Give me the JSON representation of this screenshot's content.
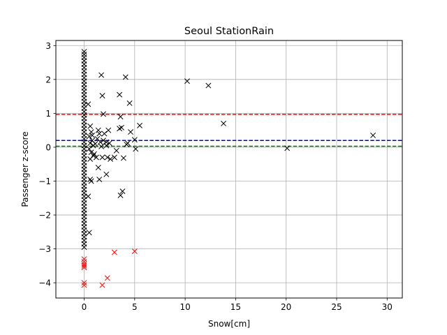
{
  "chart_data": {
    "type": "scatter",
    "title": "Seoul StationRain",
    "xlabel": "Snow[cm]",
    "ylabel": "Passenger z-score",
    "xlim": [
      -2.8,
      31.5
    ],
    "ylim": [
      -4.45,
      3.15
    ],
    "xticks": [
      0,
      5,
      10,
      15,
      20,
      25,
      30
    ],
    "yticks": [
      -4,
      -3,
      -2,
      -1,
      0,
      1,
      2,
      3
    ],
    "grid": true,
    "marker": "x",
    "reference_lines": [
      {
        "y": 0.97,
        "color": "#ff0000",
        "style": "dashed"
      },
      {
        "y": 0.2,
        "color": "#0000cc",
        "style": "dashed"
      },
      {
        "y": 0.03,
        "color": "#008000",
        "style": "dashed"
      }
    ],
    "series": [
      {
        "color": "#000000",
        "points": [
          [
            0,
            2.82
          ],
          [
            0,
            2.74
          ],
          [
            0,
            2.65
          ],
          [
            0,
            2.55
          ],
          [
            0,
            2.45
          ],
          [
            0,
            2.35
          ],
          [
            0,
            2.25
          ],
          [
            0,
            2.15
          ],
          [
            0,
            2.05
          ],
          [
            0,
            1.95
          ],
          [
            0,
            1.85
          ],
          [
            0,
            1.75
          ],
          [
            0,
            1.65
          ],
          [
            0,
            1.55
          ],
          [
            0,
            1.45
          ],
          [
            0,
            1.35
          ],
          [
            0,
            1.25
          ],
          [
            0,
            1.15
          ],
          [
            0,
            1.05
          ],
          [
            0,
            0.95
          ],
          [
            0,
            0.85
          ],
          [
            0,
            0.75
          ],
          [
            0,
            0.65
          ],
          [
            0,
            0.55
          ],
          [
            0,
            0.45
          ],
          [
            0,
            0.35
          ],
          [
            0,
            0.25
          ],
          [
            0,
            0.15
          ],
          [
            0,
            0.05
          ],
          [
            0,
            -0.05
          ],
          [
            0,
            -0.15
          ],
          [
            0,
            -0.25
          ],
          [
            0,
            -0.35
          ],
          [
            0,
            -0.45
          ],
          [
            0,
            -0.55
          ],
          [
            0,
            -0.65
          ],
          [
            0,
            -0.75
          ],
          [
            0,
            -0.85
          ],
          [
            0,
            -0.95
          ],
          [
            0,
            -1.05
          ],
          [
            0,
            -1.15
          ],
          [
            0,
            -1.25
          ],
          [
            0,
            -1.35
          ],
          [
            0,
            -1.45
          ],
          [
            0,
            -1.55
          ],
          [
            0,
            -1.65
          ],
          [
            0,
            -1.75
          ],
          [
            0,
            -1.85
          ],
          [
            0,
            -1.95
          ],
          [
            0,
            -2.05
          ],
          [
            0,
            -2.15
          ],
          [
            0,
            -2.25
          ],
          [
            0,
            -2.35
          ],
          [
            0,
            -2.45
          ],
          [
            0,
            -2.55
          ],
          [
            0,
            -2.65
          ],
          [
            0,
            -2.75
          ],
          [
            0,
            -2.85
          ],
          [
            0,
            -2.95
          ],
          [
            0.4,
            1.27
          ],
          [
            0.6,
            0.62
          ],
          [
            0.7,
            0.45
          ],
          [
            0.5,
            0.32
          ],
          [
            0.8,
            0.2
          ],
          [
            0.6,
            0.12
          ],
          [
            0.9,
            0.05
          ],
          [
            0.5,
            -0.05
          ],
          [
            0.7,
            -0.15
          ],
          [
            0.9,
            -0.25
          ],
          [
            0.6,
            -0.35
          ],
          [
            1.0,
            -0.2
          ],
          [
            1.1,
            0.1
          ],
          [
            0.8,
            0.35
          ],
          [
            0.4,
            -1.45
          ],
          [
            0.5,
            -2.52
          ],
          [
            0.7,
            -1.0
          ],
          [
            0.6,
            -0.95
          ],
          [
            1.2,
            -0.3
          ],
          [
            1.3,
            0.25
          ],
          [
            1.4,
            0.5
          ],
          [
            1.5,
            0.4
          ],
          [
            1.6,
            0.15
          ],
          [
            1.4,
            -0.6
          ],
          [
            1.5,
            -0.95
          ],
          [
            1.7,
            0.02
          ],
          [
            1.8,
            -0.3
          ],
          [
            1.9,
            0.2
          ],
          [
            2.0,
            0.4
          ],
          [
            2.2,
            0.05
          ],
          [
            2.3,
            -0.3
          ],
          [
            2.4,
            0.5
          ],
          [
            2.2,
            -0.8
          ],
          [
            2.5,
            0.12
          ],
          [
            1.7,
            2.13
          ],
          [
            1.8,
            1.52
          ],
          [
            1.9,
            0.98
          ],
          [
            2.2,
            0.15
          ],
          [
            3.0,
            -0.3
          ],
          [
            3.2,
            -0.1
          ],
          [
            3.5,
            1.55
          ],
          [
            3.6,
            0.9
          ],
          [
            3.7,
            0.58
          ],
          [
            3.5,
            0.55
          ],
          [
            3.6,
            -1.42
          ],
          [
            3.8,
            -1.3
          ],
          [
            3.9,
            -0.32
          ],
          [
            4.1,
            2.07
          ],
          [
            4.3,
            0.12
          ],
          [
            4.5,
            1.3
          ],
          [
            4.6,
            0.45
          ],
          [
            5.0,
            0.22
          ],
          [
            5.1,
            -0.05
          ],
          [
            5.5,
            0.64
          ],
          [
            4.2,
            0.08
          ],
          [
            2.6,
            -0.35
          ],
          [
            10.2,
            1.95
          ],
          [
            12.3,
            1.82
          ],
          [
            13.8,
            0.7
          ],
          [
            20.1,
            -0.03
          ],
          [
            28.6,
            0.35
          ]
        ]
      },
      {
        "color": "#ff0000",
        "points": [
          [
            0,
            -3.3
          ],
          [
            0,
            -3.38
          ],
          [
            0,
            -3.45
          ],
          [
            0,
            -3.5
          ],
          [
            0,
            -3.55
          ],
          [
            0,
            -4.0
          ],
          [
            0,
            -4.07
          ],
          [
            3.0,
            -3.1
          ],
          [
            5.0,
            -3.07
          ],
          [
            1.8,
            -4.07
          ],
          [
            2.3,
            -3.86
          ]
        ]
      }
    ]
  }
}
